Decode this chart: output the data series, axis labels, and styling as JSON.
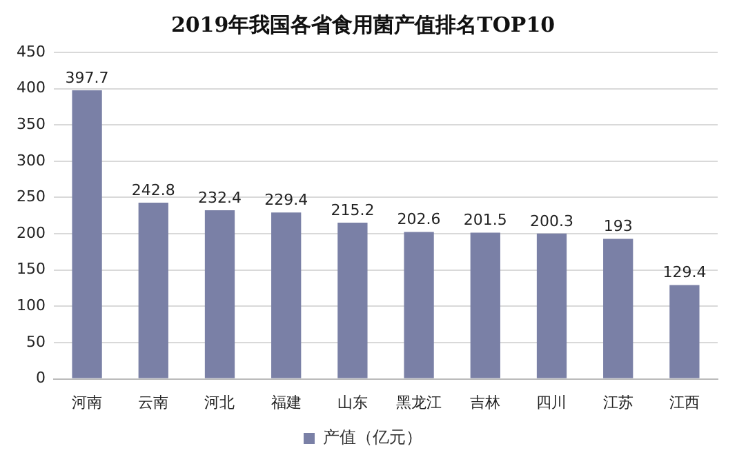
{
  "chart_data": {
    "type": "bar",
    "title": "2019年我国各省食用菌产值排名TOP10",
    "categories": [
      "河南",
      "云南",
      "河北",
      "福建",
      "山东",
      "黑龙江",
      "吉林",
      "四川",
      "江苏",
      "江西"
    ],
    "series": [
      {
        "name": "产值（亿元）",
        "color": "#7a80a6",
        "values": [
          397.7,
          242.8,
          232.4,
          229.4,
          215.2,
          202.6,
          201.5,
          200.3,
          193,
          129.4
        ]
      }
    ],
    "ylim": [
      0,
      450
    ],
    "yticks": [
      0,
      50,
      100,
      150,
      200,
      250,
      300,
      350,
      400,
      450
    ],
    "grid": "y",
    "legend": "bottom",
    "data_labels": true
  }
}
